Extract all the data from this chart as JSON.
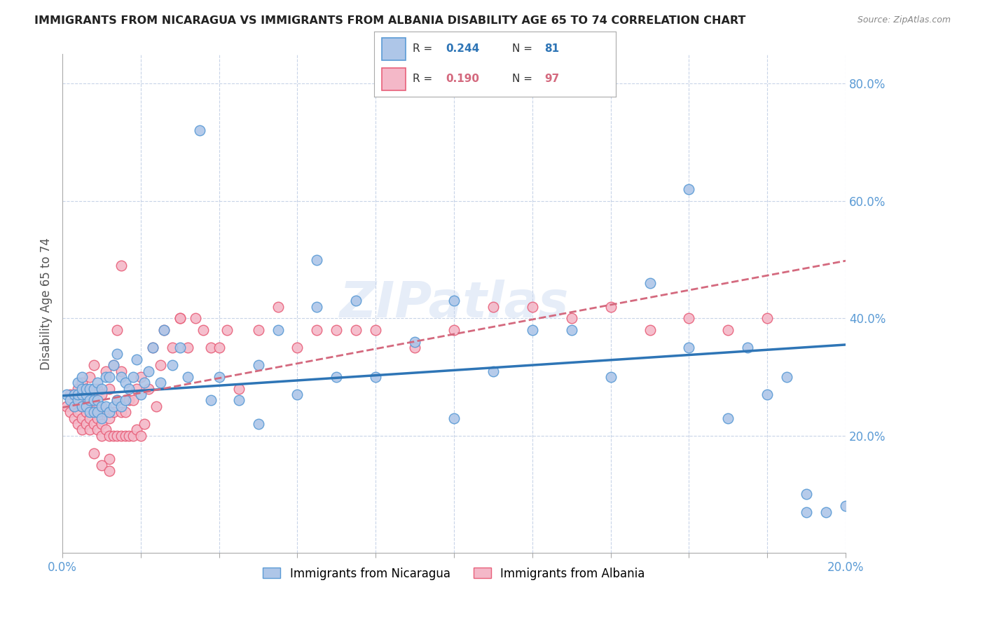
{
  "title": "IMMIGRANTS FROM NICARAGUA VS IMMIGRANTS FROM ALBANIA DISABILITY AGE 65 TO 74 CORRELATION CHART",
  "source": "Source: ZipAtlas.com",
  "xlabel": "",
  "ylabel": "Disability Age 65 to 74",
  "xlim": [
    0.0,
    0.2
  ],
  "ylim": [
    0.0,
    0.85
  ],
  "ytick_values": [
    0.0,
    0.2,
    0.4,
    0.6,
    0.8
  ],
  "xtick_values": [
    0.0,
    0.02,
    0.04,
    0.06,
    0.08,
    0.1,
    0.12,
    0.14,
    0.16,
    0.18,
    0.2
  ],
  "nicaragua_color": "#aec6e8",
  "nicaragua_edge_color": "#5b9bd5",
  "albania_color": "#f4b8c8",
  "albania_edge_color": "#e8607a",
  "nicaragua_R": 0.244,
  "nicaragua_N": 81,
  "albania_R": 0.19,
  "albania_N": 97,
  "trendline_nicaragua_color": "#2E75B6",
  "trendline_albania_color": "#d4697e",
  "watermark": "ZIPatlas",
  "background_color": "#ffffff",
  "grid_color": "#c8d4e8",
  "axis_color": "#5b9bd5",
  "title_color": "#222222",
  "legend_label_nicaragua": "Immigrants from Nicaragua",
  "legend_label_albania": "Immigrants from Albania",
  "nicaragua_x": [
    0.001,
    0.002,
    0.003,
    0.003,
    0.004,
    0.004,
    0.004,
    0.005,
    0.005,
    0.005,
    0.005,
    0.006,
    0.006,
    0.006,
    0.007,
    0.007,
    0.007,
    0.008,
    0.008,
    0.008,
    0.009,
    0.009,
    0.009,
    0.01,
    0.01,
    0.01,
    0.011,
    0.011,
    0.012,
    0.012,
    0.013,
    0.013,
    0.014,
    0.014,
    0.015,
    0.015,
    0.016,
    0.016,
    0.017,
    0.018,
    0.019,
    0.02,
    0.021,
    0.022,
    0.023,
    0.025,
    0.026,
    0.028,
    0.03,
    0.032,
    0.035,
    0.038,
    0.04,
    0.045,
    0.05,
    0.055,
    0.06,
    0.065,
    0.07,
    0.075,
    0.08,
    0.09,
    0.1,
    0.11,
    0.12,
    0.13,
    0.14,
    0.15,
    0.16,
    0.17,
    0.18,
    0.19,
    0.195,
    0.2,
    0.16,
    0.065,
    0.05,
    0.1,
    0.175,
    0.185,
    0.19
  ],
  "nicaragua_y": [
    0.27,
    0.26,
    0.25,
    0.27,
    0.26,
    0.27,
    0.29,
    0.25,
    0.27,
    0.28,
    0.3,
    0.25,
    0.27,
    0.28,
    0.24,
    0.26,
    0.28,
    0.24,
    0.26,
    0.28,
    0.24,
    0.26,
    0.29,
    0.23,
    0.25,
    0.28,
    0.25,
    0.3,
    0.24,
    0.3,
    0.25,
    0.32,
    0.26,
    0.34,
    0.25,
    0.3,
    0.26,
    0.29,
    0.28,
    0.3,
    0.33,
    0.27,
    0.29,
    0.31,
    0.35,
    0.29,
    0.38,
    0.32,
    0.35,
    0.3,
    0.72,
    0.26,
    0.3,
    0.26,
    0.32,
    0.38,
    0.27,
    0.42,
    0.3,
    0.43,
    0.3,
    0.36,
    0.43,
    0.31,
    0.38,
    0.38,
    0.3,
    0.46,
    0.35,
    0.23,
    0.27,
    0.07,
    0.07,
    0.08,
    0.62,
    0.5,
    0.22,
    0.23,
    0.35,
    0.3,
    0.1
  ],
  "albania_x": [
    0.001,
    0.002,
    0.002,
    0.003,
    0.003,
    0.003,
    0.004,
    0.004,
    0.004,
    0.004,
    0.005,
    0.005,
    0.005,
    0.005,
    0.005,
    0.006,
    0.006,
    0.006,
    0.006,
    0.007,
    0.007,
    0.007,
    0.007,
    0.008,
    0.008,
    0.008,
    0.008,
    0.009,
    0.009,
    0.009,
    0.009,
    0.01,
    0.01,
    0.01,
    0.011,
    0.011,
    0.011,
    0.012,
    0.012,
    0.012,
    0.013,
    0.013,
    0.013,
    0.014,
    0.014,
    0.015,
    0.015,
    0.015,
    0.016,
    0.016,
    0.017,
    0.017,
    0.018,
    0.018,
    0.019,
    0.019,
    0.02,
    0.02,
    0.021,
    0.022,
    0.023,
    0.024,
    0.025,
    0.026,
    0.028,
    0.03,
    0.032,
    0.034,
    0.036,
    0.038,
    0.04,
    0.042,
    0.045,
    0.05,
    0.055,
    0.06,
    0.065,
    0.07,
    0.075,
    0.08,
    0.09,
    0.1,
    0.11,
    0.12,
    0.13,
    0.14,
    0.15,
    0.16,
    0.17,
    0.18,
    0.012,
    0.014,
    0.03,
    0.015,
    0.008,
    0.01,
    0.012
  ],
  "albania_y": [
    0.25,
    0.24,
    0.27,
    0.23,
    0.25,
    0.27,
    0.22,
    0.24,
    0.26,
    0.28,
    0.21,
    0.23,
    0.25,
    0.27,
    0.29,
    0.22,
    0.24,
    0.26,
    0.28,
    0.21,
    0.23,
    0.25,
    0.3,
    0.22,
    0.24,
    0.26,
    0.32,
    0.21,
    0.23,
    0.25,
    0.28,
    0.2,
    0.22,
    0.27,
    0.21,
    0.24,
    0.31,
    0.2,
    0.23,
    0.28,
    0.2,
    0.24,
    0.32,
    0.2,
    0.26,
    0.2,
    0.24,
    0.31,
    0.2,
    0.24,
    0.2,
    0.26,
    0.2,
    0.26,
    0.21,
    0.28,
    0.2,
    0.3,
    0.22,
    0.28,
    0.35,
    0.25,
    0.32,
    0.38,
    0.35,
    0.4,
    0.35,
    0.4,
    0.38,
    0.35,
    0.35,
    0.38,
    0.28,
    0.38,
    0.42,
    0.35,
    0.38,
    0.38,
    0.38,
    0.38,
    0.35,
    0.38,
    0.42,
    0.42,
    0.4,
    0.42,
    0.38,
    0.4,
    0.38,
    0.4,
    0.16,
    0.38,
    0.4,
    0.49,
    0.17,
    0.15,
    0.14
  ],
  "trendline_nic_x0": 0.0,
  "trendline_nic_x1": 0.2,
  "trendline_nic_y0": 0.268,
  "trendline_nic_y1": 0.355,
  "trendline_alb_x0": 0.0,
  "trendline_alb_x1": 0.2,
  "trendline_alb_y0": 0.248,
  "trendline_alb_y1": 0.498
}
